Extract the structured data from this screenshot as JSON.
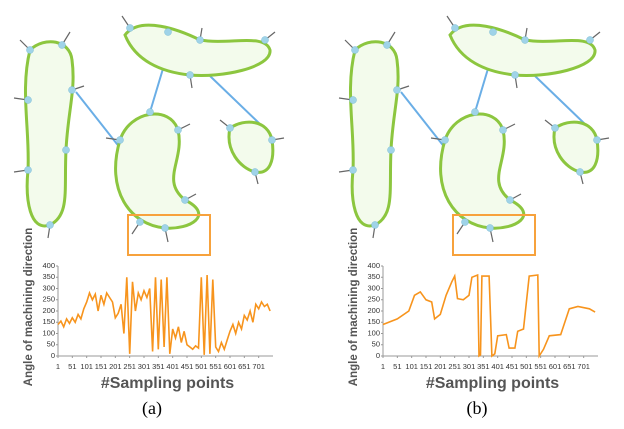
{
  "chart_data": [
    {
      "type": "line",
      "ylabel": "Angle of machining direction",
      "xlabel": "#Sampling points",
      "color": "#f7941d",
      "x": [
        1,
        11,
        21,
        31,
        41,
        51,
        61,
        71,
        81,
        91,
        101,
        111,
        121,
        131,
        141,
        151,
        161,
        171,
        181,
        191,
        201,
        211,
        221,
        231,
        241,
        251,
        261,
        271,
        281,
        291,
        301,
        311,
        321,
        331,
        341,
        351,
        361,
        371,
        381,
        391,
        401,
        411,
        421,
        431,
        441,
        451,
        461,
        471,
        481,
        491,
        501,
        511,
        521,
        531,
        541,
        551,
        561,
        571,
        581,
        591,
        601,
        611,
        621,
        631,
        641,
        651,
        661,
        671,
        681,
        691,
        701,
        711,
        721,
        731,
        741
      ],
      "values": [
        140,
        155,
        130,
        165,
        145,
        170,
        150,
        185,
        165,
        210,
        240,
        280,
        250,
        275,
        200,
        270,
        230,
        280,
        260,
        240,
        170,
        190,
        230,
        100,
        350,
        10,
        330,
        200,
        280,
        250,
        290,
        260,
        300,
        20,
        350,
        30,
        340,
        40,
        350,
        10,
        120,
        80,
        130,
        60,
        110,
        50,
        40,
        30,
        45,
        35,
        350,
        5,
        360,
        10,
        340,
        40,
        20,
        60,
        30,
        70,
        110,
        140,
        100,
        150,
        120,
        180,
        160,
        200,
        150,
        230,
        210,
        240,
        220,
        230,
        200
      ],
      "xlim": [
        1,
        751
      ],
      "ylim": [
        0,
        400
      ],
      "xticks": [
        1,
        51,
        101,
        151,
        201,
        251,
        301,
        351,
        401,
        451,
        501,
        551,
        601,
        651,
        701
      ],
      "yticks": [
        0,
        50,
        100,
        150,
        200,
        250,
        300,
        350,
        400
      ]
    },
    {
      "type": "line",
      "ylabel": "Angle of machining direction",
      "xlabel": "#Sampling points",
      "color": "#f7941d",
      "x": [
        1,
        51,
        91,
        111,
        131,
        151,
        171,
        181,
        201,
        221,
        241,
        251,
        261,
        281,
        301,
        311,
        331,
        336,
        341,
        346,
        371,
        381,
        391,
        401,
        431,
        441,
        461,
        471,
        491,
        511,
        541,
        546,
        561,
        581,
        621,
        651,
        681,
        721,
        741
      ],
      "values": [
        140,
        165,
        200,
        270,
        285,
        250,
        240,
        165,
        185,
        270,
        330,
        355,
        255,
        250,
        270,
        350,
        360,
        0,
        5,
        355,
        355,
        0,
        10,
        90,
        95,
        35,
        35,
        110,
        120,
        355,
        360,
        0,
        30,
        90,
        95,
        210,
        220,
        210,
        195
      ],
      "xlim": [
        1,
        751
      ],
      "ylim": [
        0,
        400
      ],
      "xticks": [
        1,
        51,
        101,
        151,
        201,
        251,
        301,
        351,
        401,
        451,
        501,
        551,
        601,
        651,
        701
      ],
      "yticks": [
        0,
        50,
        100,
        150,
        200,
        250,
        300,
        350,
        400
      ]
    }
  ],
  "captions": [
    "(a)",
    "(b)"
  ]
}
